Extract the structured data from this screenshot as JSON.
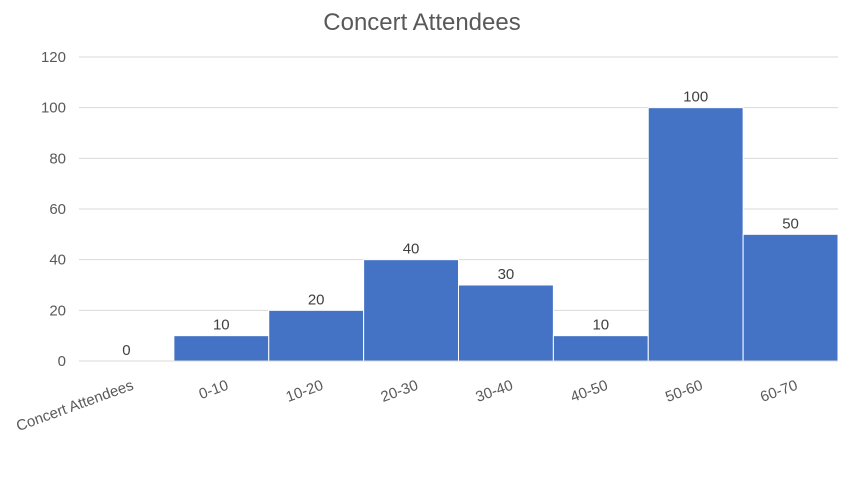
{
  "chart_data": {
    "type": "bar",
    "title": "Concert Attendees",
    "categories": [
      "Concert Attendees",
      "0-10",
      "10-20",
      "20-30",
      "30-40",
      "40-50",
      "50-60",
      "60-70"
    ],
    "values": [
      0,
      10,
      20,
      40,
      30,
      10,
      100,
      50
    ],
    "data_labels": [
      "0",
      "10",
      "20",
      "40",
      "30",
      "10",
      "100",
      "50"
    ],
    "ylim": [
      0,
      120
    ],
    "yticks": [
      "0",
      "20",
      "40",
      "60",
      "80",
      "100",
      "120"
    ],
    "grid": true,
    "legend": "none",
    "bar_color": "#4472c4"
  }
}
